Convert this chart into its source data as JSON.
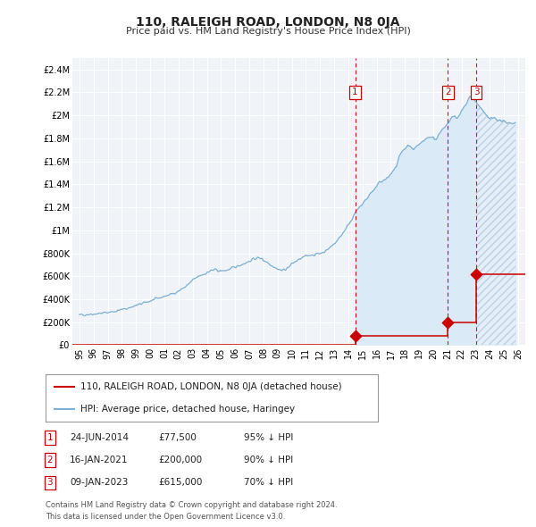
{
  "title": "110, RALEIGH ROAD, LONDON, N8 0JA",
  "subtitle": "Price paid vs. HM Land Registry's House Price Index (HPI)",
  "xlim": [
    1994.5,
    2026.5
  ],
  "ylim": [
    0,
    2500000
  ],
  "yticks": [
    0,
    200000,
    400000,
    600000,
    800000,
    1000000,
    1200000,
    1400000,
    1600000,
    1800000,
    2000000,
    2200000,
    2400000
  ],
  "ytick_labels": [
    "£0",
    "£200K",
    "£400K",
    "£600K",
    "£800K",
    "£1M",
    "£1.2M",
    "£1.4M",
    "£1.6M",
    "£1.8M",
    "£2M",
    "£2.2M",
    "£2.4M"
  ],
  "hpi_color": "#7bafd4",
  "hpi_fill_color": "#daeaf7",
  "hatch_fill_color": "#e8f0f8",
  "property_color": "#cc0000",
  "sale_marker_color": "#cc0000",
  "vline_color": "#cc0000",
  "plot_bg_color": "#f0f4f8",
  "grid_color": "#ffffff",
  "legend_border_color": "#999999",
  "transaction_dates": [
    2014.479,
    2021.04,
    2023.03
  ],
  "transaction_prices": [
    77500,
    200000,
    615000
  ],
  "transaction_labels": [
    "1",
    "2",
    "3"
  ],
  "transaction_table": [
    {
      "num": "1",
      "date": "24-JUN-2014",
      "price": "£77,500",
      "hpi_pct": "95% ↓ HPI"
    },
    {
      "num": "2",
      "date": "16-JAN-2021",
      "price": "£200,000",
      "hpi_pct": "90% ↓ HPI"
    },
    {
      "num": "3",
      "date": "09-JAN-2023",
      "price": "£615,000",
      "hpi_pct": "70% ↓ HPI"
    }
  ],
  "legend_line1": "110, RALEIGH ROAD, LONDON, N8 0JA (detached house)",
  "legend_line2": "HPI: Average price, detached house, Haringey",
  "footer_line1": "Contains HM Land Registry data © Crown copyright and database right 2024.",
  "footer_line2": "This data is licensed under the Open Government Licence v3.0.",
  "xtick_years": [
    1995,
    1996,
    1997,
    1998,
    1999,
    2000,
    2001,
    2002,
    2003,
    2004,
    2005,
    2006,
    2007,
    2008,
    2009,
    2010,
    2011,
    2012,
    2013,
    2014,
    2015,
    2016,
    2017,
    2018,
    2019,
    2020,
    2021,
    2022,
    2023,
    2024,
    2025,
    2026
  ],
  "hpi_start_year": 1995.0,
  "hpi_end_year": 2025.8,
  "fill_start_year": 2014.479,
  "hatch_start_year": 2023.03
}
